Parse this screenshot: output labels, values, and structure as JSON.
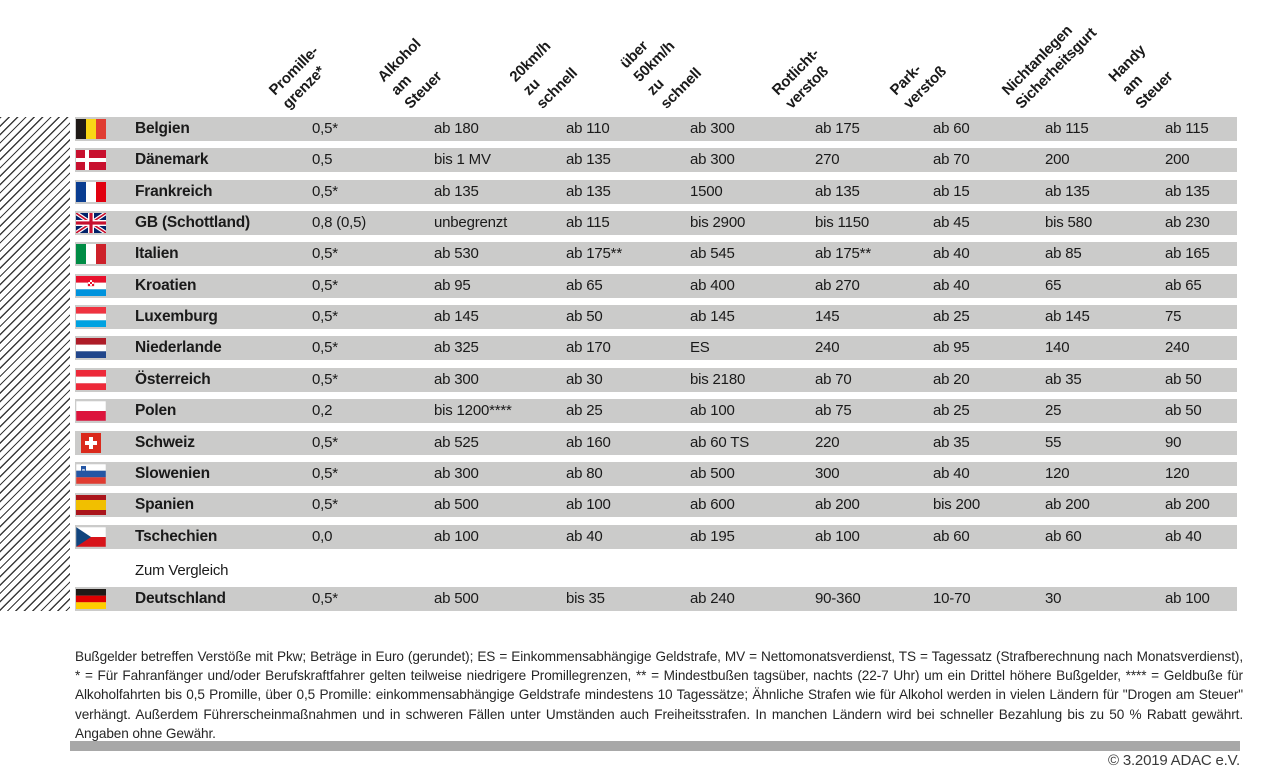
{
  "table": {
    "columns": [
      {
        "label": "Promille-\ngrenze*"
      },
      {
        "label": "Alkohol\nam Steuer"
      },
      {
        "label": "20km/h\nzu schnell"
      },
      {
        "label": "über 50km/h\nzu schnell"
      },
      {
        "label": "Rotlicht-\nverstoß"
      },
      {
        "label": "Park-\nverstoß"
      },
      {
        "label": "Nichtanlegen\nSicherheitsgurt"
      },
      {
        "label": "Handy am\nSteuer"
      }
    ],
    "countries": [
      {
        "name": "Belgien",
        "flag": "be",
        "values": [
          "0,5*",
          "ab 180",
          "ab 110",
          "ab 300",
          "ab 175",
          "ab 60",
          "ab 115",
          "ab 115"
        ]
      },
      {
        "name": "Dänemark",
        "flag": "dk",
        "values": [
          "0,5",
          "bis 1 MV",
          "ab 135",
          "ab 300",
          "270",
          "ab 70",
          "200",
          "200"
        ]
      },
      {
        "name": "Frankreich",
        "flag": "fr",
        "values": [
          "0,5*",
          "ab 135",
          "ab 135",
          "1500",
          "ab 135",
          "ab 15",
          "ab 135",
          "ab 135"
        ]
      },
      {
        "name": "GB (Schottland)",
        "flag": "gb",
        "values": [
          "0,8 (0,5)",
          "unbegrenzt",
          "ab 115",
          "bis 2900",
          "bis 1150",
          "ab 45",
          "bis 580",
          "ab 230"
        ]
      },
      {
        "name": "Italien",
        "flag": "it",
        "values": [
          "0,5*",
          "ab 530",
          "ab 175**",
          "ab 545",
          "ab 175**",
          "ab 40",
          "ab 85",
          "ab 165"
        ]
      },
      {
        "name": "Kroatien",
        "flag": "hr",
        "values": [
          "0,5*",
          "ab 95",
          "ab 65",
          "ab 400",
          "ab 270",
          "ab 40",
          "65",
          "ab 65"
        ]
      },
      {
        "name": "Luxemburg",
        "flag": "lu",
        "values": [
          "0,5*",
          "ab 145",
          "ab 50",
          "ab 145",
          "145",
          "ab 25",
          "ab 145",
          "75"
        ]
      },
      {
        "name": "Niederlande",
        "flag": "nl",
        "values": [
          "0,5*",
          "ab 325",
          "ab 170",
          "ES",
          "240",
          "ab 95",
          "140",
          "240"
        ]
      },
      {
        "name": "Österreich",
        "flag": "at",
        "values": [
          "0,5*",
          "ab 300",
          "ab 30",
          "bis 2180",
          "ab 70",
          "ab 20",
          "ab 35",
          "ab 50"
        ]
      },
      {
        "name": "Polen",
        "flag": "pl",
        "values": [
          "0,2",
          "bis 1200****",
          "ab 25",
          "ab 100",
          "ab 75",
          "ab 25",
          "25",
          "ab 50"
        ]
      },
      {
        "name": "Schweiz",
        "flag": "ch",
        "values": [
          "0,5*",
          "ab 525",
          "ab 160",
          "ab 60 TS",
          "220",
          "ab 35",
          "55",
          "90"
        ]
      },
      {
        "name": "Slowenien",
        "flag": "si",
        "values": [
          "0,5*",
          "ab 300",
          "ab 80",
          "ab 500",
          "300",
          "ab 40",
          "120",
          "120"
        ]
      },
      {
        "name": "Spanien",
        "flag": "es",
        "values": [
          "0,5*",
          "ab 500",
          "ab 100",
          "ab 600",
          "ab 200",
          "bis 200",
          "ab 200",
          "ab 200"
        ]
      },
      {
        "name": "Tschechien",
        "flag": "cz",
        "values": [
          "0,0",
          "ab 100",
          "ab 40",
          "ab 195",
          "ab 100",
          "ab 60",
          "ab 60",
          "ab 40"
        ]
      }
    ],
    "compare_label": "Zum Vergleich",
    "comparison": {
      "name": "Deutschland",
      "flag": "de",
      "values": [
        "0,5*",
        "ab 500",
        "bis 35",
        "ab 240",
        "90-360",
        "10-70",
        "30",
        "ab 100"
      ]
    }
  },
  "footnote": "Bußgelder betreffen Verstöße mit Pkw; Beträge in Euro (gerundet); ES = Einkommensabhängige Geldstrafe, MV = Nettomonatsverdienst, TS = Tagessatz (Strafberechnung nach Monatsverdienst), * = Für Fahranfänger und/oder Berufskraftfahrer gelten teilweise niedrigere Promillegrenzen, ** = Mindestbußen tagsüber, nachts (22-7 Uhr) um ein Drittel höhere Bußgelder, **** = Geldbuße für Alkoholfahrten bis 0,5 Promille, über 0,5 Promille: einkommensabhängige Geldstrafe mindestens 10 Tagessätze; Ähnliche Strafen wie für Alkohol werden in vielen Ländern für \"Drogen am Steuer\" verhängt. Außerdem Führerscheinmaßnahmen und in schweren Fällen unter Umständen auch Freiheitsstrafen. In manchen Ländern wird bei schneller Bezahlung bis zu 50 % Rabatt gewährt. Angaben ohne Gewähr.",
  "copyright": "© 3.2019 ADAC e.V.",
  "colors": {
    "row_gray": "#cbcbca",
    "footer_bar_gray": "#a8a8a8",
    "text": "#1a1a1a"
  }
}
